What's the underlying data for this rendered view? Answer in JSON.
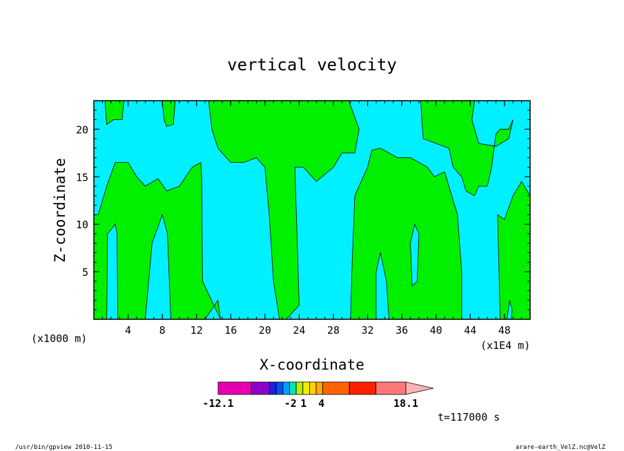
{
  "chart_data": {
    "type": "heatmap",
    "title": "vertical velocity",
    "xlabel": "X-coordinate",
    "ylabel": "Z-coordinate",
    "x_unit_label": "(x1000 m)",
    "x_unit_label_right": "(x1E4 m)",
    "xlim": [
      0,
      51
    ],
    "ylim": [
      0,
      23
    ],
    "x_ticks": [
      4,
      8,
      12,
      16,
      20,
      24,
      28,
      32,
      36,
      40,
      44,
      48
    ],
    "y_ticks": [
      5,
      10,
      15,
      20
    ],
    "colors": {
      "positive": "#00f0ff",
      "negative": "#00f000",
      "outline": "#000000"
    },
    "regions": [
      {
        "value": "positive",
        "points": [
          [
            0,
            0
          ],
          [
            51,
            0
          ],
          [
            51,
            23
          ],
          [
            0,
            23
          ]
        ]
      },
      {
        "value": "negative",
        "points": [
          [
            0,
            0
          ],
          [
            1.5,
            0
          ],
          [
            1.6,
            9
          ],
          [
            2.5,
            10
          ],
          [
            2.7,
            9
          ],
          [
            2.8,
            0
          ],
          [
            6,
            0
          ],
          [
            6.8,
            8
          ],
          [
            8,
            11
          ],
          [
            8.6,
            9
          ],
          [
            9,
            0
          ],
          [
            13,
            0
          ],
          [
            14.5,
            2
          ],
          [
            14.8,
            0
          ],
          [
            12.7,
            4
          ],
          [
            12.6,
            15
          ],
          [
            12.5,
            16.5
          ],
          [
            11.5,
            16
          ],
          [
            10,
            14
          ],
          [
            8.5,
            13.5
          ],
          [
            7.5,
            14.8
          ],
          [
            6,
            14
          ],
          [
            5,
            15
          ],
          [
            4,
            16.5
          ],
          [
            2.5,
            16.5
          ],
          [
            1.5,
            14
          ],
          [
            0.5,
            11
          ],
          [
            0,
            11
          ]
        ]
      },
      {
        "value": "negative",
        "points": [
          [
            1.3,
            23
          ],
          [
            3.5,
            23
          ],
          [
            3.3,
            21
          ],
          [
            2.3,
            21
          ],
          [
            1.5,
            20.5
          ]
        ]
      },
      {
        "value": "negative",
        "points": [
          [
            8,
            23
          ],
          [
            9.5,
            23
          ],
          [
            9.3,
            20.5
          ],
          [
            8.5,
            20.3
          ],
          [
            8.2,
            21
          ]
        ]
      },
      {
        "value": "negative",
        "points": [
          [
            13.4,
            23
          ],
          [
            29.8,
            23
          ],
          [
            31,
            20
          ],
          [
            30.5,
            17.5
          ],
          [
            29,
            17.5
          ],
          [
            28,
            16
          ],
          [
            26,
            14.5
          ],
          [
            25.5,
            15
          ],
          [
            24.5,
            16
          ],
          [
            23.5,
            16
          ],
          [
            24,
            1.5
          ],
          [
            22.5,
            0
          ],
          [
            21.7,
            0
          ],
          [
            21,
            4
          ],
          [
            20.5,
            11
          ],
          [
            20,
            16
          ],
          [
            19,
            17
          ],
          [
            17.5,
            16.5
          ],
          [
            16,
            16.5
          ],
          [
            14.5,
            18
          ],
          [
            13.8,
            20
          ]
        ]
      },
      {
        "value": "negative",
        "points": [
          [
            30,
            0
          ],
          [
            33,
            0
          ],
          [
            33,
            5
          ],
          [
            33.5,
            7
          ],
          [
            34.2,
            4
          ],
          [
            34.5,
            0
          ],
          [
            43,
            0
          ],
          [
            43,
            5
          ],
          [
            42.5,
            11
          ],
          [
            41.5,
            14
          ],
          [
            41,
            15.5
          ],
          [
            39.8,
            15
          ],
          [
            39,
            16
          ],
          [
            37,
            17
          ],
          [
            35.5,
            17
          ],
          [
            33.5,
            18
          ],
          [
            32.5,
            17.8
          ],
          [
            32,
            16
          ],
          [
            30.5,
            13
          ],
          [
            30.2,
            6
          ]
        ]
      },
      {
        "value": "negative",
        "points": [
          [
            38.2,
            23
          ],
          [
            44.5,
            23
          ],
          [
            44.2,
            21
          ],
          [
            45,
            18.5
          ],
          [
            47,
            18.2
          ],
          [
            48.5,
            19
          ],
          [
            49,
            21
          ],
          [
            48.5,
            20
          ],
          [
            47.5,
            20
          ],
          [
            47,
            19.5
          ],
          [
            46.5,
            16
          ],
          [
            46,
            14
          ],
          [
            45,
            14
          ],
          [
            44.5,
            13
          ],
          [
            43.5,
            13.5
          ],
          [
            43,
            15
          ],
          [
            42,
            16
          ],
          [
            41.5,
            18
          ],
          [
            40,
            18.5
          ],
          [
            38.5,
            19
          ]
        ]
      },
      {
        "value": "negative",
        "points": [
          [
            47.5,
            0
          ],
          [
            51,
            0
          ],
          [
            51,
            13
          ],
          [
            50,
            14.5
          ],
          [
            49,
            13
          ],
          [
            48,
            10.5
          ],
          [
            47.2,
            11
          ]
        ]
      },
      {
        "value": "positive",
        "points": [
          [
            37,
            8
          ],
          [
            37.5,
            10
          ],
          [
            38,
            9
          ],
          [
            37.8,
            4
          ],
          [
            37.2,
            3.5
          ]
        ]
      },
      {
        "value": "positive",
        "points": [
          [
            48.3,
            0
          ],
          [
            48.6,
            2
          ],
          [
            48.9,
            1
          ],
          [
            48.8,
            0
          ]
        ]
      }
    ],
    "colorbar": {
      "segments": [
        "#e600b4",
        "#8c00c8",
        "#1e1edc",
        "#0050ff",
        "#00a0ff",
        "#00e6b4",
        "#b4f000",
        "#f0f000",
        "#ffd200",
        "#ffaa00",
        "#ff6400",
        "#ff2000",
        "#ff7878"
      ],
      "overflow_color": "#ffb4b4",
      "labels": [
        {
          "value": "-12.1",
          "position": 0.0
        },
        {
          "value": "-2",
          "position": 0.385
        },
        {
          "value": "1",
          "position": 0.455
        },
        {
          "value": "4",
          "position": 0.55
        },
        {
          "value": "18.1",
          "position": 1.0
        }
      ]
    },
    "time_label": "t=117000 s",
    "footer_left": "/usr/bin/gpview   2010-11-15",
    "footer_right": "arare-earth_VelZ.nc@VelZ"
  }
}
